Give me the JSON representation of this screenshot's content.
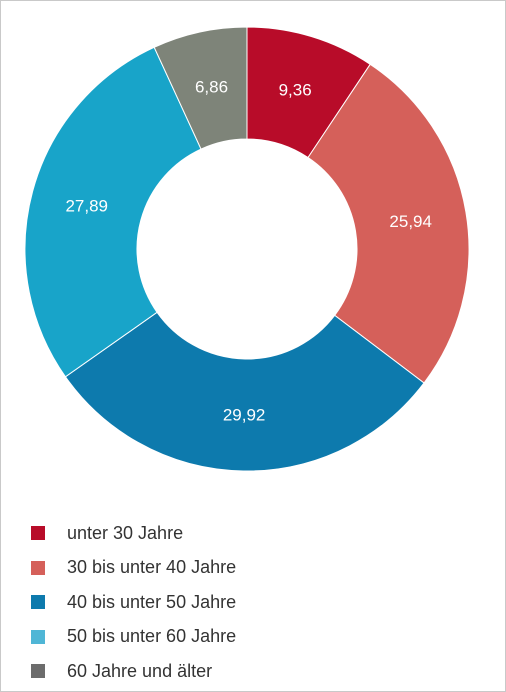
{
  "chart_data": {
    "type": "pie",
    "donut": true,
    "categories": [
      "unter 30 Jahre",
      "30 bis unter 40 Jahre",
      "40 bis unter 50 Jahre",
      "50 bis unter 60 Jahre",
      "60 Jahre und älter"
    ],
    "values": [
      9.36,
      25.94,
      29.92,
      27.89,
      6.86
    ],
    "value_labels": [
      "9,36",
      "25,94",
      "29,92",
      "27,89",
      "6,86"
    ],
    "colors": [
      "#b80c29",
      "#d5605a",
      "#0d7aad",
      "#18a4c9",
      "#7e8479"
    ],
    "legend_colors": [
      "#b80c29",
      "#d5605a",
      "#0d7aad",
      "#4fb6d6",
      "#6c6c6c"
    ],
    "title": "",
    "legend_position": "bottom-left"
  }
}
